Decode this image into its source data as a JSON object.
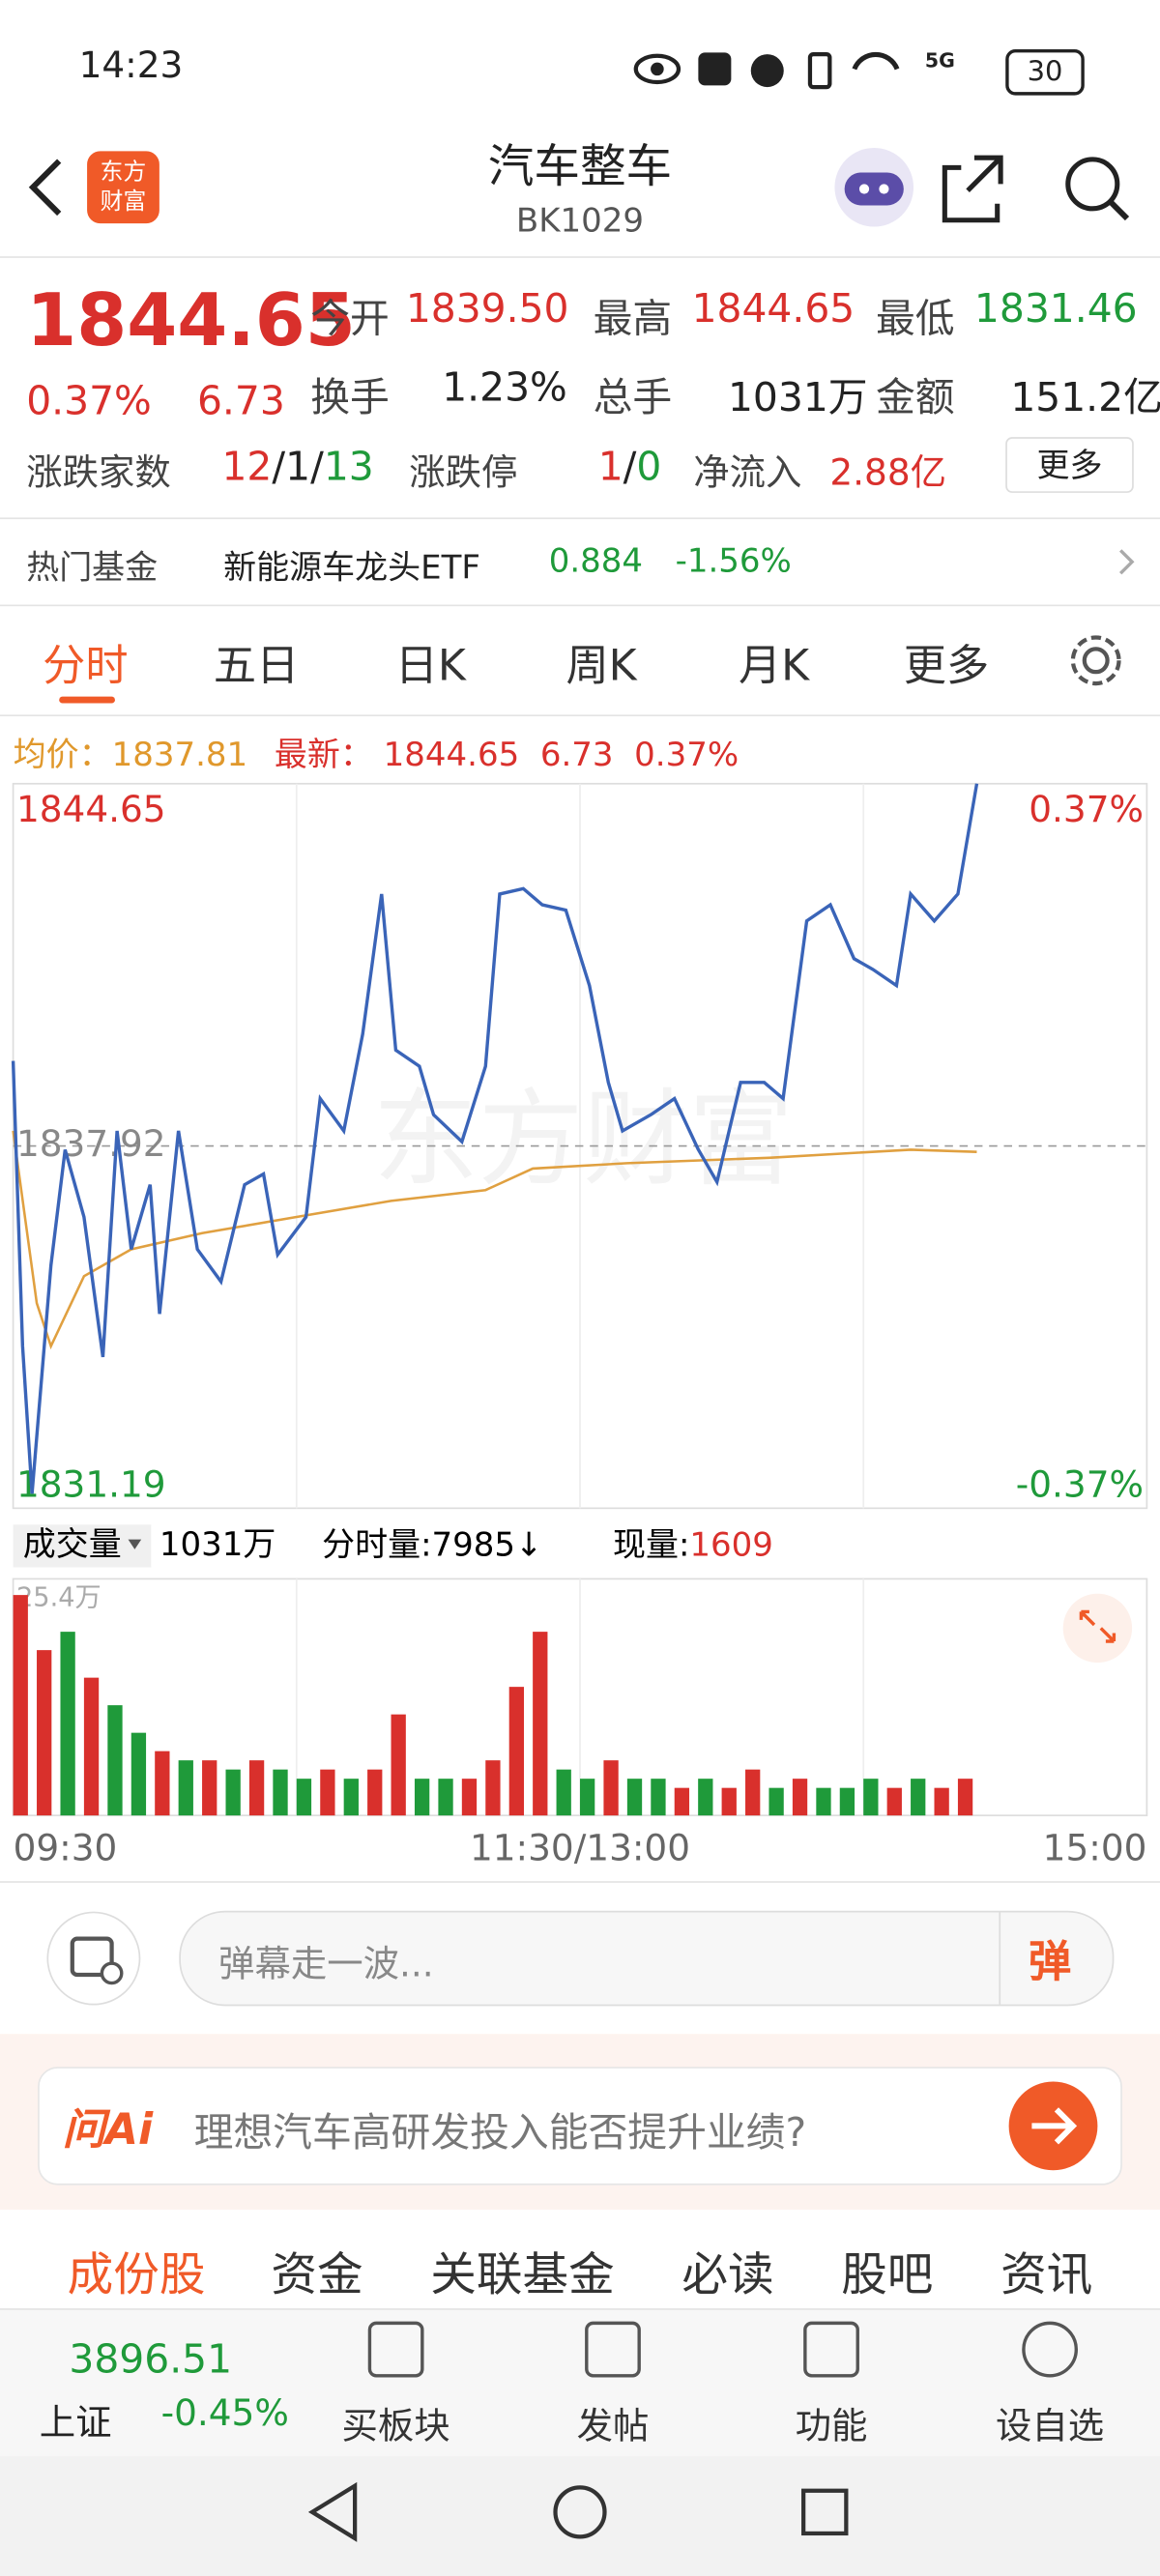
{
  "status_bar": {
    "time": "14:23",
    "network": "5G",
    "battery": "30"
  },
  "header": {
    "logo": [
      "东方",
      "财富"
    ],
    "title": "汽车整车",
    "code": "BK1029"
  },
  "quote": {
    "price": "1844.65",
    "change_pct": "0.37%",
    "change": "6.73",
    "stats": [
      {
        "label": "今开",
        "value": "1839.50"
      },
      {
        "label": "最高",
        "value": "1844.65"
      },
      {
        "label": "最低",
        "value": "1831.46"
      },
      {
        "label": "换手",
        "value": "1.23%"
      },
      {
        "label": "总手",
        "value": "1031万"
      },
      {
        "label": "金额",
        "value": "151.2亿"
      }
    ],
    "breadth": {
      "label": "涨跌家数",
      "up": "12",
      "flat": "/1/",
      "down": "13"
    },
    "limit": {
      "label": "涨跌停",
      "up": "1",
      "sep": "/",
      "down": "0"
    },
    "inflow": {
      "label": "净流入",
      "value": "2.88亿"
    },
    "more": "更多"
  },
  "fund": {
    "label": "热门基金",
    "name": "新能源车龙头ETF",
    "price": "0.884",
    "change": "-1.56%"
  },
  "tabs": [
    "分时",
    "五日",
    "日K",
    "周K",
    "月K",
    "更多"
  ],
  "info": {
    "avg_label": "均价：",
    "avg": "1837.81",
    "last_label": "最新：",
    "last": "1844.65",
    "change": "6.73",
    "change_pct": "0.37%"
  },
  "chart_data": {
    "type": "line",
    "watermark": "东方财富",
    "xlim": [
      0,
      240
    ],
    "xticks": [
      {
        "value": 0,
        "label": "09:30"
      },
      {
        "value": 120,
        "label": "11:30/13:00"
      },
      {
        "value": 240,
        "label": "15:00"
      }
    ],
    "ylim": [
      1831.19,
      1844.65
    ],
    "yticks": [
      1831.19,
      1837.92,
      1844.65
    ],
    "y2lim": [
      -0.37,
      0.37
    ],
    "y2ticks": [
      {
        "value": 0.37,
        "label": "0.37%"
      },
      {
        "value": -0.37,
        "label": "-0.37%"
      }
    ],
    "series": [
      {
        "color": "#3a64b8",
        "x": [
          0,
          2,
          4,
          8,
          11,
          15,
          19,
          22,
          25,
          29,
          31,
          35,
          39,
          44,
          49,
          53,
          56,
          62,
          65,
          70,
          74,
          78,
          81,
          86,
          89,
          95,
          100,
          103,
          108,
          112,
          117,
          122,
          126,
          129,
          135,
          140,
          145,
          149,
          154,
          159,
          163,
          168,
          173,
          178,
          182,
          187,
          190,
          195,
          200,
          204
        ],
        "values": [
          1839.5,
          1834.2,
          1831.46,
          1835.7,
          1837.85,
          1836.6,
          1834.0,
          1838.2,
          1836.0,
          1837.2,
          1834.8,
          1838.2,
          1836.0,
          1835.4,
          1837.2,
          1837.4,
          1835.9,
          1836.6,
          1838.8,
          1838.2,
          1840.0,
          1842.6,
          1839.7,
          1839.4,
          1838.5,
          1838.0,
          1839.4,
          1842.6,
          1842.7,
          1842.4,
          1842.3,
          1840.9,
          1839.1,
          1838.2,
          1838.5,
          1838.8,
          1837.86,
          1837.25,
          1839.1,
          1839.1,
          1838.8,
          1842.1,
          1842.4,
          1841.4,
          1841.2,
          1840.9,
          1842.6,
          1842.1,
          1842.6,
          1844.65
        ]
      },
      {
        "color": "#e0a040",
        "x": [
          0,
          5,
          8,
          15,
          25,
          40,
          60,
          80,
          100,
          110,
          130,
          160,
          190,
          204
        ],
        "values": [
          1838.2,
          1835.0,
          1834.2,
          1835.5,
          1836.0,
          1836.3,
          1836.6,
          1836.9,
          1837.1,
          1837.5,
          1837.6,
          1837.7,
          1837.85,
          1837.81
        ]
      }
    ],
    "volume": {
      "ylim": [
        0,
        25.4
      ],
      "yticks": [
        {
          "value": 25.4,
          "label": "25.4万"
        }
      ],
      "x": [
        0,
        5,
        10,
        15,
        20,
        25,
        30,
        35,
        40,
        45,
        50,
        55,
        60,
        65,
        70,
        75,
        80,
        85,
        90,
        95,
        100,
        105,
        110,
        115,
        120,
        125,
        130,
        135,
        140,
        145,
        150,
        155,
        160,
        165,
        170,
        175,
        180,
        185,
        190,
        195,
        200
      ],
      "values": [
        24,
        18,
        20,
        15,
        12,
        9,
        7,
        6,
        6,
        5,
        6,
        5,
        4,
        5,
        4,
        5,
        11,
        4,
        4,
        4,
        6,
        14,
        20,
        5,
        4,
        6,
        4,
        4,
        3,
        4,
        3,
        5,
        3,
        4,
        3,
        3,
        4,
        3,
        4,
        3,
        4
      ],
      "colors": [
        "#d9302c",
        "#d9302c",
        "#1f9a3a",
        "#d9302c",
        "#1f9a3a",
        "#1f9a3a",
        "#d9302c",
        "#1f9a3a",
        "#d9302c",
        "#1f9a3a",
        "#d9302c",
        "#1f9a3a",
        "#1f9a3a",
        "#d9302c",
        "#1f9a3a",
        "#d9302c",
        "#d9302c",
        "#1f9a3a",
        "#1f9a3a",
        "#d9302c",
        "#d9302c",
        "#d9302c",
        "#d9302c",
        "#1f9a3a",
        "#1f9a3a",
        "#d9302c",
        "#1f9a3a",
        "#1f9a3a",
        "#d9302c",
        "#1f9a3a",
        "#d9302c",
        "#d9302c",
        "#1f9a3a",
        "#d9302c",
        "#1f9a3a",
        "#1f9a3a",
        "#1f9a3a",
        "#d9302c",
        "#1f9a3a",
        "#d9302c",
        "#d9302c"
      ]
    }
  },
  "volume_bar": {
    "label": "成交量",
    "total": "1031万",
    "tick_label": "分时量:",
    "tick_value": "7985↓",
    "now_label": "现量:",
    "now_value": "1609"
  },
  "danmaku": {
    "placeholder": "弹幕走一波...",
    "button": "弹"
  },
  "ai": {
    "badge": "问Ai",
    "question": "理想汽车高研发投入能否提升业绩?"
  },
  "section_tabs": [
    "成份股",
    "资金",
    "关联基金",
    "必读",
    "股吧",
    "资讯"
  ],
  "bottom_nav": {
    "index": {
      "value": "3896.51",
      "name": "上证",
      "change": "-0.45%"
    },
    "items": [
      "买板块",
      "发帖",
      "功能",
      "设自选"
    ]
  }
}
